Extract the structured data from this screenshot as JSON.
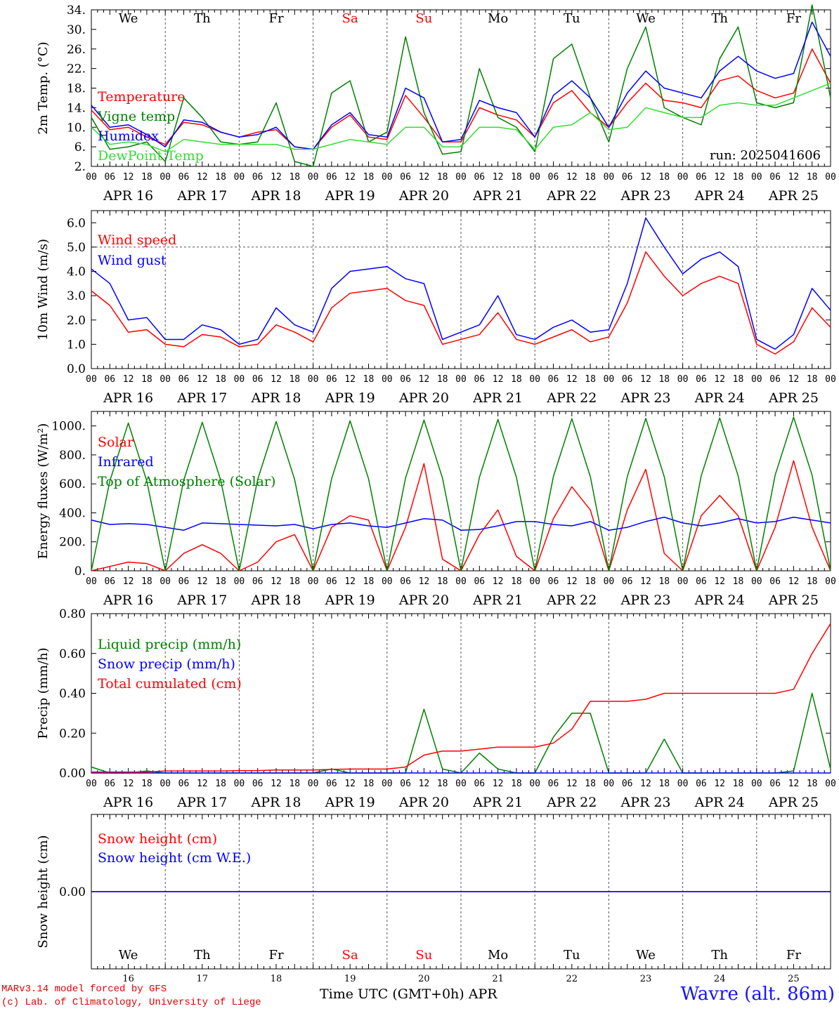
{
  "footer": {
    "credit_line1": "MARv3.14 model forced by GFS",
    "credit_line2": "(c) Lab. of Climatology, University of Liege",
    "x_title": "Time UTC (GMT+0h) APR",
    "station": "Wavre (alt. 86m)"
  },
  "colors": {
    "red": "#ff0000",
    "green": "#008000",
    "blue": "#0000ff",
    "lightgreen": "#33dd33",
    "weekend": "#ff0000",
    "weekday": "#000000"
  },
  "chart_data": [
    {
      "type": "line",
      "ylabel": "2m Temp. (°C)",
      "ylim": [
        2,
        34
      ],
      "yticks": [
        "2.",
        "6.",
        "10.",
        "14.",
        "18.",
        "22.",
        "26.",
        "30.",
        "34."
      ],
      "ytick_values": [
        2,
        6,
        10,
        14,
        18,
        22,
        26,
        30,
        34
      ],
      "day_names": [
        "We",
        "Th",
        "Fr",
        "Sa",
        "Su",
        "Mo",
        "Tu",
        "We",
        "Th",
        "Fr"
      ],
      "weekend_days": [
        3,
        4
      ],
      "hour_ticks": [
        "00",
        "06",
        "12",
        "18"
      ],
      "date_labels": [
        "APR 16",
        "APR 17",
        "APR 18",
        "APR 19",
        "APR 20",
        "APR 21",
        "APR 22",
        "APR 23",
        "APR 24",
        "APR 25"
      ],
      "x_hours": [
        0,
        6,
        12,
        18,
        24,
        30,
        36,
        42,
        48,
        54,
        60,
        66,
        72,
        78,
        84,
        90,
        96,
        102,
        108,
        114,
        120,
        126,
        132,
        138,
        144,
        150,
        156,
        162,
        168,
        174,
        180,
        186,
        192,
        198,
        204,
        210,
        216,
        222,
        228,
        234,
        240
      ],
      "annotation": "run: 2025041606",
      "series": [
        {
          "name": "Temperature",
          "color": "red",
          "values": [
            13.5,
            9.5,
            10,
            8,
            6.5,
            11,
            10.5,
            9,
            8,
            9,
            9.5,
            6,
            5.5,
            10,
            12.5,
            8,
            7.5,
            16.5,
            12,
            7,
            7,
            14,
            12.5,
            11.5,
            8,
            15,
            17.5,
            13,
            10,
            15,
            19,
            15.5,
            15,
            14,
            19.5,
            20.5,
            17.5,
            16,
            17,
            26,
            19
          ]
        },
        {
          "name": "Vigne temp",
          "color": "green",
          "values": [
            12,
            5.5,
            6,
            7,
            3,
            16,
            12,
            7,
            6.5,
            7,
            15,
            3,
            2,
            17,
            19.5,
            7,
            9,
            28.5,
            13,
            4.5,
            5,
            22,
            12,
            10,
            5,
            24,
            27,
            16,
            7,
            22,
            30.5,
            14,
            12,
            10.5,
            24,
            30.5,
            15,
            14,
            15,
            35,
            16
          ]
        },
        {
          "name": "Humidex",
          "color": "blue",
          "values": [
            14.5,
            10,
            10.5,
            8.5,
            6,
            11.5,
            11,
            9,
            8,
            8.5,
            10,
            6,
            5.5,
            10.5,
            13,
            8.5,
            8,
            18,
            16,
            7,
            7.5,
            15.5,
            14,
            13,
            8,
            16.5,
            19.5,
            16,
            10,
            17,
            21.5,
            18,
            17,
            16,
            21.5,
            24.5,
            21.5,
            20,
            21,
            31.5,
            24.5
          ]
        },
        {
          "name": "DewPoint Temp",
          "color": "lightgreen",
          "values": [
            10,
            6.5,
            7,
            6.5,
            5,
            7.5,
            7,
            6.5,
            6.5,
            6.5,
            6.5,
            5.5,
            5.5,
            6.5,
            7.5,
            7,
            6.5,
            10,
            10,
            6,
            6,
            10,
            10,
            9.5,
            5.5,
            10,
            10.5,
            13,
            9.5,
            10,
            14,
            13,
            12,
            12,
            14.5,
            15,
            14.5,
            14.5,
            16,
            17.5,
            19
          ]
        }
      ]
    },
    {
      "type": "line",
      "ylabel": "10m Wind (m/s)",
      "ylim": [
        0,
        6.5
      ],
      "yticks": [
        "0.0",
        "1.0",
        "2.0",
        "3.0",
        "4.0",
        "5.0",
        "6.0"
      ],
      "ytick_values": [
        0,
        1,
        2,
        3,
        4,
        5,
        6
      ],
      "reference_line": 5.0,
      "hour_ticks": [
        "00",
        "06",
        "12",
        "18"
      ],
      "date_labels": [
        "APR 16",
        "APR 17",
        "APR 18",
        "APR 19",
        "APR 20",
        "APR 21",
        "APR 22",
        "APR 23",
        "APR 24",
        "APR 25"
      ],
      "x_hours": [
        0,
        6,
        12,
        18,
        24,
        30,
        36,
        42,
        48,
        54,
        60,
        66,
        72,
        78,
        84,
        90,
        96,
        102,
        108,
        114,
        120,
        126,
        132,
        138,
        144,
        150,
        156,
        162,
        168,
        174,
        180,
        186,
        192,
        198,
        204,
        210,
        216,
        222,
        228,
        234,
        240
      ],
      "series": [
        {
          "name": "Wind speed",
          "color": "red",
          "values": [
            3.2,
            2.6,
            1.5,
            1.6,
            1.0,
            0.9,
            1.4,
            1.3,
            0.9,
            1.0,
            1.8,
            1.5,
            1.1,
            2.5,
            3.1,
            3.2,
            3.3,
            2.8,
            2.6,
            1.0,
            1.2,
            1.4,
            2.3,
            1.2,
            1.0,
            1.3,
            1.6,
            1.1,
            1.3,
            2.7,
            4.8,
            3.8,
            3.0,
            3.5,
            3.8,
            3.5,
            1.0,
            0.6,
            1.1,
            2.5,
            1.7
          ]
        },
        {
          "name": "Wind gust",
          "color": "blue",
          "values": [
            4.1,
            3.5,
            2.0,
            2.1,
            1.2,
            1.2,
            1.8,
            1.6,
            1.0,
            1.2,
            2.5,
            1.8,
            1.5,
            3.3,
            4.0,
            4.1,
            4.2,
            3.7,
            3.5,
            1.2,
            1.5,
            1.8,
            3.0,
            1.4,
            1.2,
            1.7,
            2.0,
            1.5,
            1.6,
            3.5,
            6.2,
            5.0,
            3.9,
            4.5,
            4.8,
            4.2,
            1.2,
            0.8,
            1.4,
            3.3,
            2.4
          ]
        }
      ]
    },
    {
      "type": "line",
      "ylabel": "Energy fluxes (W/m²)",
      "ylim": [
        0,
        1100
      ],
      "yticks": [
        "0.",
        "200.",
        "400.",
        "600.",
        "800.",
        "1000."
      ],
      "ytick_values": [
        0,
        200,
        400,
        600,
        800,
        1000
      ],
      "hour_ticks": [
        "00",
        "06",
        "12",
        "18"
      ],
      "date_labels": [
        "APR 16",
        "APR 17",
        "APR 18",
        "APR 19",
        "APR 20",
        "APR 21",
        "APR 22",
        "APR 23",
        "APR 24",
        "APR 25"
      ],
      "x_hours": [
        0,
        6,
        12,
        18,
        24,
        30,
        36,
        42,
        48,
        54,
        60,
        66,
        72,
        78,
        84,
        90,
        96,
        102,
        108,
        114,
        120,
        126,
        132,
        138,
        144,
        150,
        156,
        162,
        168,
        174,
        180,
        186,
        192,
        198,
        204,
        210,
        216,
        222,
        228,
        234,
        240
      ],
      "series": [
        {
          "name": "Solar",
          "color": "red",
          "values": [
            0,
            30,
            60,
            50,
            0,
            120,
            180,
            120,
            0,
            60,
            200,
            250,
            0,
            300,
            380,
            350,
            0,
            300,
            740,
            80,
            0,
            250,
            420,
            100,
            0,
            360,
            580,
            420,
            0,
            420,
            700,
            120,
            0,
            380,
            520,
            380,
            0,
            300,
            760,
            300,
            0
          ]
        },
        {
          "name": "Infrared",
          "color": "blue",
          "values": [
            350,
            320,
            325,
            320,
            300,
            280,
            330,
            325,
            320,
            315,
            310,
            320,
            290,
            320,
            330,
            310,
            300,
            330,
            360,
            350,
            280,
            285,
            310,
            340,
            340,
            320,
            310,
            340,
            280,
            300,
            340,
            370,
            330,
            310,
            330,
            360,
            330,
            340,
            370,
            350,
            330
          ]
        },
        {
          "name": "Top of Atmosphere (Solar)",
          "color": "green",
          "values": [
            0,
            620,
            1020,
            620,
            0,
            625,
            1025,
            625,
            0,
            630,
            1030,
            630,
            0,
            635,
            1035,
            635,
            0,
            640,
            1040,
            640,
            0,
            645,
            1045,
            645,
            0,
            650,
            1050,
            650,
            0,
            650,
            1052,
            650,
            0,
            655,
            1055,
            655,
            0,
            660,
            1060,
            660,
            0
          ]
        }
      ]
    },
    {
      "type": "line",
      "ylabel": "Precip (mm/h)",
      "ylim": [
        0,
        0.8
      ],
      "yticks": [
        "0.00",
        "0.20",
        "0.40",
        "0.60",
        "0.80"
      ],
      "ytick_values": [
        0,
        0.2,
        0.4,
        0.6,
        0.8
      ],
      "hour_ticks": [
        "00",
        "06",
        "12",
        "18"
      ],
      "date_labels": [
        "APR 16",
        "APR 17",
        "APR 18",
        "APR 19",
        "APR 20",
        "APR 21",
        "APR 22",
        "APR 23",
        "APR 24",
        "APR 25"
      ],
      "x_hours": [
        0,
        6,
        12,
        18,
        24,
        30,
        36,
        42,
        48,
        54,
        60,
        66,
        72,
        78,
        84,
        90,
        96,
        102,
        108,
        114,
        120,
        126,
        132,
        138,
        144,
        150,
        156,
        162,
        168,
        174,
        180,
        186,
        192,
        198,
        204,
        210,
        216,
        222,
        228,
        234,
        240
      ],
      "series": [
        {
          "name": "Liquid precip (mm/h)",
          "color": "green",
          "values": [
            0.03,
            0,
            0,
            0.01,
            0,
            0,
            0,
            0,
            0,
            0,
            0,
            0,
            0,
            0.02,
            0,
            0,
            0,
            0,
            0.32,
            0.02,
            0,
            0.1,
            0.02,
            0,
            0,
            0.18,
            0.3,
            0.3,
            0,
            0,
            0,
            0.17,
            0,
            0,
            0,
            0,
            0,
            0,
            0.01,
            0.4,
            0.02
          ]
        },
        {
          "name": "Snow precip (mm/h)",
          "color": "blue",
          "values": [
            0,
            0,
            0,
            0,
            0,
            0,
            0,
            0,
            0,
            0,
            0,
            0,
            0,
            0,
            0,
            0,
            0,
            0,
            0,
            0,
            0,
            0,
            0,
            0,
            0,
            0,
            0,
            0,
            0,
            0,
            0,
            0,
            0,
            0,
            0,
            0,
            0,
            0,
            0,
            0,
            0
          ]
        },
        {
          "name": "Total cumulated (cm)",
          "color": "red",
          "values": [
            0.005,
            0.005,
            0.005,
            0.005,
            0.01,
            0.01,
            0.01,
            0.01,
            0.012,
            0.012,
            0.015,
            0.015,
            0.015,
            0.018,
            0.02,
            0.02,
            0.02,
            0.03,
            0.09,
            0.11,
            0.11,
            0.12,
            0.13,
            0.13,
            0.13,
            0.15,
            0.22,
            0.36,
            0.36,
            0.36,
            0.37,
            0.4,
            0.4,
            0.4,
            0.4,
            0.4,
            0.4,
            0.4,
            0.42,
            0.6,
            0.75
          ]
        }
      ]
    },
    {
      "type": "line",
      "ylabel": "Snow height (cm)",
      "ylim": [
        -1,
        1
      ],
      "yticks": [
        "0.00"
      ],
      "ytick_values": [
        0
      ],
      "day_names": [
        "We",
        "Th",
        "Fr",
        "Sa",
        "Su",
        "Mo",
        "Tu",
        "We",
        "Th",
        "Fr"
      ],
      "weekend_days": [
        3,
        4
      ],
      "day_numbers": [
        "16",
        "17",
        "18",
        "19",
        "20",
        "21",
        "22",
        "23",
        "24",
        "25"
      ],
      "x_hours": [
        0,
        240
      ],
      "series": [
        {
          "name": "Snow height (cm)",
          "color": "red",
          "values": [
            0,
            0
          ]
        },
        {
          "name": "Snow height (cm W.E.)",
          "color": "blue",
          "values": [
            0,
            0
          ]
        }
      ]
    }
  ]
}
